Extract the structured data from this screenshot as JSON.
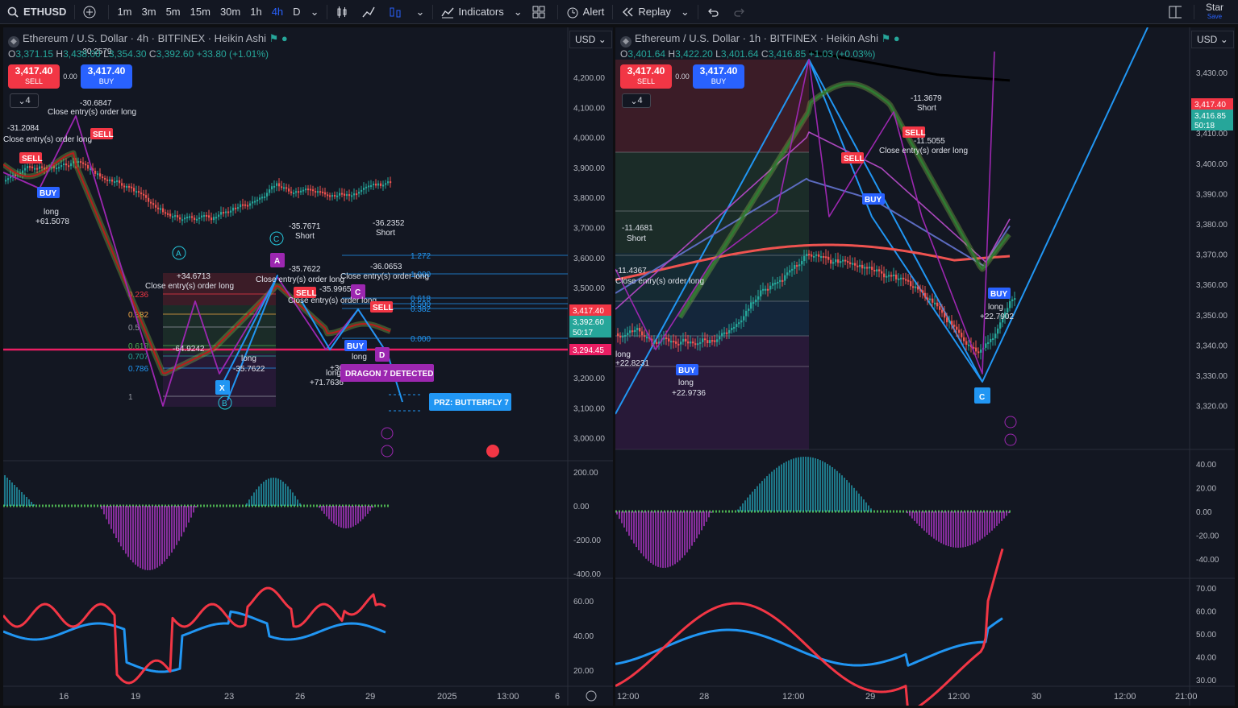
{
  "toolbar": {
    "symbol": "ETHUSD",
    "intervals": [
      "1m",
      "3m",
      "5m",
      "15m",
      "30m",
      "1h",
      "4h",
      "D"
    ],
    "active_interval": "4h",
    "indicators": "Indicators",
    "alert": "Alert",
    "replay": "Replay",
    "star": "Star",
    "save": "Save"
  },
  "icons": [
    "search-icon",
    "plus-circle-icon",
    "candles-icon",
    "line-chart-icon",
    "bar-chart-icon",
    "templates-icon",
    "alert-clock-icon",
    "replay-icon",
    "undo-icon",
    "redo-icon",
    "layout-icon",
    "tradingview-logo-icon"
  ],
  "colors": {
    "up": "#26a69a",
    "down": "#ef5350",
    "accent": "#2962ff",
    "purple": "#9c27b0",
    "pattern": "#2196f3"
  },
  "left": {
    "title": "Ethereum / U.S. Dollar · 4h · BITFINEX · Heikin Ashi",
    "ohlc": {
      "O": "3,371.15",
      "H": "3,438.00",
      "L": "3,354.30",
      "C": "3,392.60",
      "chg": "+33.80 (+1.01%)"
    },
    "sell_price": "3,417.40",
    "sell_label": "SELL",
    "buy_price": "3,417.40",
    "buy_label": "BUY",
    "spread": "0.00",
    "counter": "4",
    "currency": "USD",
    "price_axis": [
      "4,200.00",
      "4,100.00",
      "4,000.00",
      "3,900.00",
      "3,800.00",
      "3,700.00",
      "3,600.00",
      "3,500.00",
      "3,400.00",
      "3,300.00",
      "3,200.00",
      "3,100.00",
      "3,000.00"
    ],
    "price_tags": {
      "ask": "3,417.40",
      "last": "3,392.60",
      "countdown": "50:17",
      "line": "3,294.45"
    },
    "osc1_axis": [
      "200.00",
      "0.00",
      "-200.00",
      "-400.00"
    ],
    "osc2_axis": [
      "60.00",
      "40.00",
      "20.00"
    ],
    "time_axis": [
      "16",
      "19",
      "23",
      "26",
      "29",
      "2025",
      "13:00",
      "6"
    ],
    "fib_levels": [
      "1.272",
      "1.000",
      "0.618",
      "0.500",
      "0.382",
      "0.000",
      "0.236",
      "0.382",
      "0.5",
      "0.618",
      "0.707",
      "0.786",
      "1"
    ],
    "pattern_labels": [
      "X",
      "A",
      "B",
      "C",
      "D"
    ],
    "circle_labels": [
      "A",
      "B",
      "C"
    ],
    "annotations": [
      "-30.2579",
      "-30.6847",
      "-31.2084",
      "Close entry(s) order long",
      "long",
      "+61.5078",
      "SELL",
      "BUY",
      "-35.7671",
      "Short",
      "-36.2352",
      "Short",
      "-36.0653",
      "-35.7622",
      "-35.9965",
      "+34.6713",
      "-64.9242",
      "-35.7622",
      "+71.7636",
      "+36.0653",
      "long",
      "long",
      "long",
      "Close entry(s) order long",
      "Close entry(s) order long",
      "Close entry(s) order long",
      "Close entry(s) order long",
      "Close entry(s) order long",
      "Close entry(s) order long"
    ],
    "dragon": "DRAGON 7 DETECTED",
    "prz": "PRZ: BUTTERFLY 7"
  },
  "right": {
    "title": "Ethereum / U.S. Dollar · 1h · BITFINEX · Heikin Ashi",
    "ohlc": {
      "O": "3,401.64",
      "H": "3,422.20",
      "L": "3,401.64",
      "C": "3,416.85",
      "chg": "+1.03 (+0.03%)"
    },
    "sell_price": "3,417.40",
    "sell_label": "SELL",
    "buy_price": "3,417.40",
    "buy_label": "BUY",
    "spread": "0.00",
    "counter": "4",
    "currency": "USD",
    "price_axis": [
      "3,430.00",
      "3,420.00",
      "3,410.00",
      "3,400.00",
      "3,390.00",
      "3,380.00",
      "3,370.00",
      "3,360.00",
      "3,350.00",
      "3,340.00",
      "3,330.00",
      "3,320.00"
    ],
    "price_tags": {
      "ask": "3,417.40",
      "last": "3,416.85",
      "countdown": "50:18"
    },
    "osc1_axis": [
      "40.00",
      "20.00",
      "0.00",
      "-20.00",
      "-40.00"
    ],
    "osc2_axis": [
      "70.00",
      "60.00",
      "50.00",
      "40.00",
      "30.00"
    ],
    "time_axis": [
      "12:00",
      "28",
      "12:00",
      "29",
      "12:00",
      "30",
      "12:00",
      "21:00"
    ],
    "pattern_labels": [
      "C"
    ],
    "annotations": [
      "-11.4681",
      "Short",
      "-11.4367",
      "Close entry(s) order long",
      "long",
      "+22.8231",
      "BUY",
      "long",
      "+22.9736",
      "-11.3679",
      "Short",
      "SELL",
      "-11.5055",
      "Close entry(s) order long",
      "SELL",
      "BUY",
      "BUY",
      "long",
      "+22.7902"
    ]
  }
}
